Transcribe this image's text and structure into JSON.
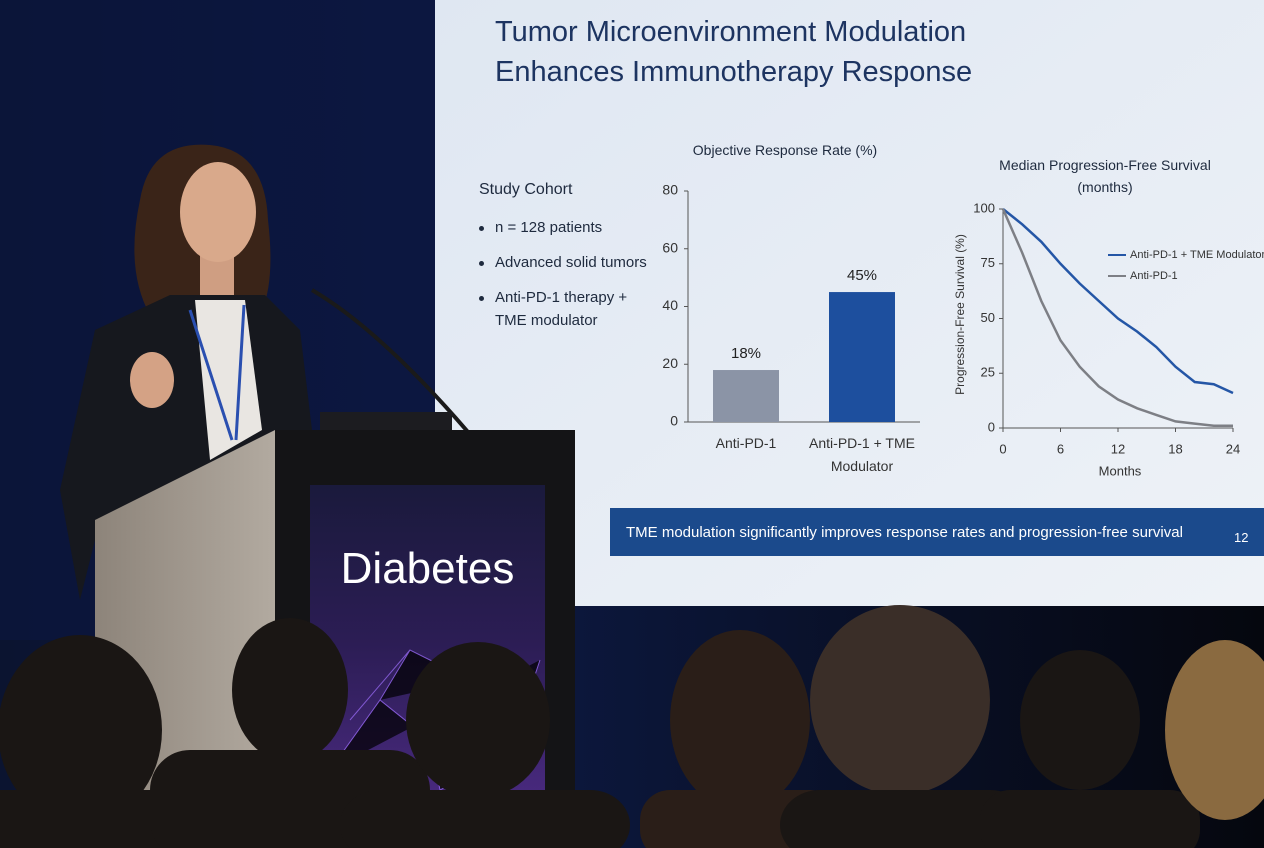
{
  "slide": {
    "title": "Tumor Microenvironment Modulation Enhances Immunotherapy Response",
    "cohort": {
      "heading": "Study Cohort",
      "bullets": [
        "n = 128 patients",
        "Advanced solid tumors",
        "Anti-PD-1 therapy + TME modulator"
      ]
    },
    "bar_chart": {
      "type": "bar",
      "title": "Objective Response Rate (%)",
      "categories": [
        "Anti-PD-1",
        "Anti-PD-1 + TME Modulator"
      ],
      "values": [
        18,
        45
      ],
      "value_labels": [
        "18%",
        "45%"
      ],
      "colors": [
        "#8b94a6",
        "#1d4f9e"
      ],
      "ylim": [
        0,
        80
      ],
      "yticks": [
        0,
        20,
        40,
        60,
        80
      ]
    },
    "line_chart": {
      "type": "line",
      "title": "Median Progression-Free Survival (months)",
      "x_label": "Months",
      "y_label": "Progression-Free Survival (%)",
      "x": [
        0,
        2,
        4,
        6,
        8,
        10,
        12,
        14,
        16,
        18,
        20,
        22,
        24
      ],
      "series": [
        {
          "name": "Anti-PD-1 + TME Modulator",
          "color": "#2456a6",
          "values": [
            100,
            93,
            85,
            75,
            66,
            58,
            50,
            44,
            37,
            28,
            21,
            20,
            16
          ]
        },
        {
          "name": "Anti-PD-1",
          "color": "#7d7f85",
          "values": [
            100,
            80,
            58,
            40,
            28,
            19,
            13,
            9,
            6,
            3,
            2,
            1,
            1
          ]
        }
      ],
      "xlim": [
        0,
        24
      ],
      "xticks": [
        0,
        6,
        12,
        18,
        24
      ],
      "ylim": [
        0,
        100
      ],
      "yticks": [
        0,
        25,
        50,
        75,
        100
      ]
    },
    "banner": "TME modulation significantly improves response rates and progression-free survival",
    "slide_number": "12"
  },
  "podium": {
    "label": "Diabetes"
  }
}
